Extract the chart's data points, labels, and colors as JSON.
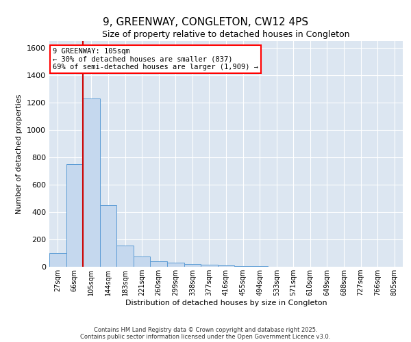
{
  "title": "9, GREENWAY, CONGLETON, CW12 4PS",
  "subtitle": "Size of property relative to detached houses in Congleton",
  "xlabel": "Distribution of detached houses by size in Congleton",
  "ylabel": "Number of detached properties",
  "bin_labels": [
    "27sqm",
    "66sqm",
    "105sqm",
    "144sqm",
    "183sqm",
    "221sqm",
    "260sqm",
    "299sqm",
    "338sqm",
    "377sqm",
    "416sqm",
    "455sqm",
    "494sqm",
    "533sqm",
    "571sqm",
    "610sqm",
    "649sqm",
    "688sqm",
    "727sqm",
    "766sqm",
    "805sqm"
  ],
  "bar_values": [
    100,
    750,
    1230,
    450,
    155,
    75,
    42,
    30,
    18,
    15,
    8,
    5,
    3,
    2,
    1,
    0,
    0,
    0,
    0,
    0,
    0
  ],
  "highlight_bin_index": 2,
  "highlight_color": "#cc0000",
  "bar_color": "#c5d8ee",
  "bar_edge_color": "#5b9bd5",
  "background_color": "#dce6f1",
  "grid_color": "#ffffff",
  "annotation_text": "9 GREENWAY: 105sqm\n← 30% of detached houses are smaller (837)\n69% of semi-detached houses are larger (1,909) →",
  "ylim": [
    0,
    1650
  ],
  "yticks": [
    0,
    200,
    400,
    600,
    800,
    1000,
    1200,
    1400,
    1600
  ],
  "footer_line1": "Contains HM Land Registry data © Crown copyright and database right 2025.",
  "footer_line2": "Contains public sector information licensed under the Open Government Licence v3.0."
}
